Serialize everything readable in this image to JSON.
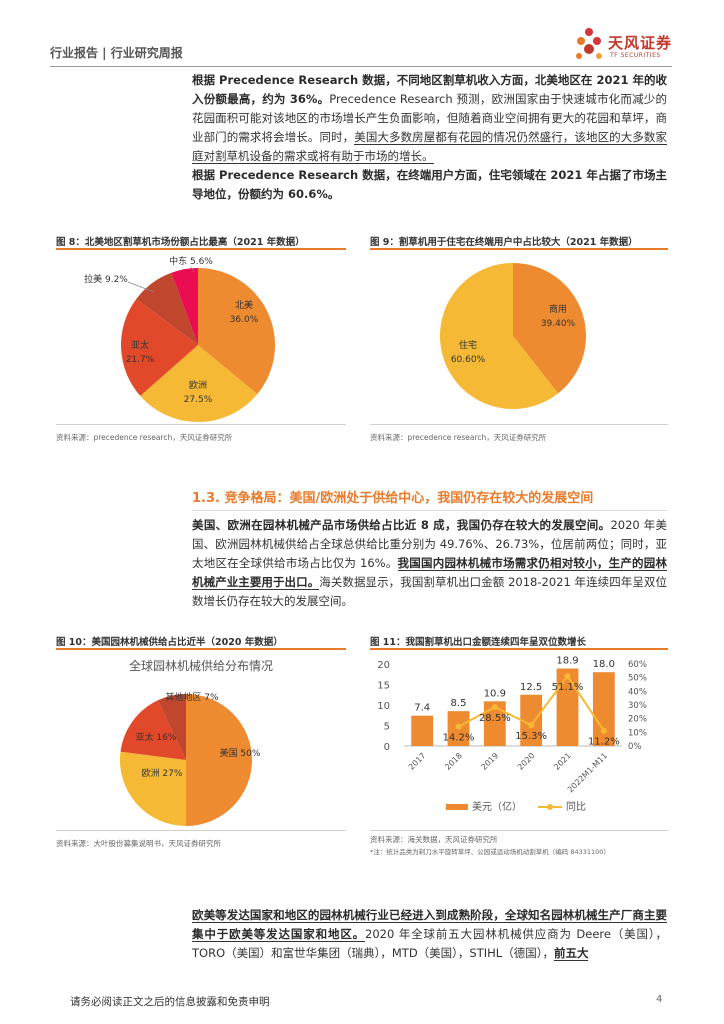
{
  "header": {
    "title": "行业报告 | 行业研究周报",
    "logo_cn": "天风证券",
    "logo_en": "TF SECURITIES"
  },
  "paragraphs": {
    "p1_bold": "根据 Precedence Research 数据，不同地区割草机收入方面，北美地区在 2021 年的收入份额最高，约为 36%。",
    "p1_rest": "Precedence Research 预测，欧洲国家由于快速城市化而减少的花园面积可能对该地区的市场增长产生负面影响，但随着商业空间拥有更大的花园和草坪，商业部门的需求将会增长。同时，",
    "p1_ul": "美国大多数房屋都有花园的情况仍然盛行，该地区的大多数家庭对割草机设备的需求或将有助于市场的增长。",
    "p2_bold": "根据 Precedence Research 数据，在终端用户方面，住宅领域在 2021 年占据了市场主导地位，份额约为 60.6%。",
    "p3_bold": "美国、欧洲在园林机械产品市场供给占比近 8 成，我国仍存在较大的发展空间。",
    "p3_rest1": "2020 年美国、欧洲园林机械供给占全球总供给比重分别为 49.76%、26.73%，位居前两位；同时，亚太地区在全球供给市场占比仅为 16%。",
    "p3_bold2": "我国国内园林机械市场需求仍相对较小，生产的园林机械产业主要用于出口。",
    "p3_rest2": "海关数据显示，我国割草机出口金额 2018-2021 年连续四年呈双位数增长仍存在较大的发展空间。",
    "p4_bold": "欧美等发达国家和地区的园林机械行业已经进入到成熟阶段，全球知名园林机械生产厂商主要集中于欧美等发达国家和地区。",
    "p4_rest": "2020 年全球前五大园林机械供应商为 Deere（美国），TORO（美国）和富世华集团（瑞典），MTD（美国），STIHL（德国），",
    "p4_tail": "前五大"
  },
  "section_heading": "1.3. 竞争格局：美国/欧洲处于供给中心，我国仍存在较大的发展空间",
  "figures": {
    "fig8": {
      "title": "图 8：北美地区割草机市场份额占比最高（2021 年数据）",
      "source": "资料来源：precedence research，天风证券研究所"
    },
    "fig9": {
      "title": "图 9：割草机用于住宅在终端用户中占比较大（2021 年数据）",
      "source": "资料来源：precedence research，天风证券研究所"
    },
    "fig10": {
      "title": "图 10：美国园林机械供给占比近半（2020 年数据）",
      "inner_title": "全球园林机械供给分布情况",
      "source": "资料来源：大叶股份募集说明书，天风证券研究所"
    },
    "fig11": {
      "title": "图 11：我国割草机出口金额连续四年呈双位数增长",
      "source": "资料来源：海关数据，天风证券研究所",
      "note": "*注：统计品类为剃刀水平旋转草坪、公园或运动场机动割草机（编码 84331100）"
    }
  },
  "chart_data": [
    {
      "type": "pie",
      "categories": [
        "北美",
        "欧洲",
        "亚太",
        "拉美",
        "中东"
      ],
      "values": [
        36.0,
        27.5,
        21.7,
        9.2,
        5.6
      ],
      "labels": [
        "36.0%",
        "27.5%",
        "21.7%",
        "拉美 9.2%",
        "中东 5.6%"
      ],
      "colors": [
        "#ee8a2f",
        "#f6b935",
        "#e2482a",
        "#c0462e",
        "#ea0d52"
      ]
    },
    {
      "type": "pie",
      "categories": [
        "商用",
        "住宅"
      ],
      "values": [
        39.4,
        60.6
      ],
      "labels": [
        "39.40%",
        "60.60%"
      ],
      "colors": [
        "#ee8a2f",
        "#f6b935"
      ]
    },
    {
      "type": "pie",
      "title": "全球园林机械供给分布情况",
      "categories": [
        "美国",
        "欧洲",
        "亚太",
        "其他地区"
      ],
      "values": [
        50,
        27,
        16,
        7
      ],
      "labels": [
        "美国 50%",
        "欧洲 27%",
        "亚太 16%",
        "其他地区 7%"
      ],
      "colors": [
        "#ee8a2f",
        "#f6b935",
        "#e2482a",
        "#c0462e"
      ]
    },
    {
      "type": "bar",
      "categories": [
        "2017",
        "2018",
        "2019",
        "2020",
        "2021",
        "2022M1-M11"
      ],
      "series": [
        {
          "name": "美元（亿）",
          "values": [
            7.4,
            8.5,
            10.9,
            12.5,
            18.9,
            18.0
          ],
          "labels": [
            "7.4",
            "8.5",
            "10.9",
            "12.5",
            "18.9",
            "18.0"
          ],
          "color": "#ee8a2f"
        },
        {
          "name": "同比",
          "type": "line",
          "values": [
            null,
            14.2,
            28.5,
            15.3,
            51.1,
            11.2
          ],
          "labels": [
            "",
            "14.2%",
            "28.5%",
            "15.3%",
            "51.1%",
            "11.2%"
          ],
          "color": "#f6b935"
        }
      ],
      "ylim": [
        0,
        20
      ],
      "yticks": [
        "0",
        "5",
        "10",
        "15",
        "20"
      ],
      "y2lim": [
        0,
        60
      ],
      "y2ticks": [
        "0%",
        "10%",
        "20%",
        "30%",
        "40%",
        "50%",
        "60%"
      ],
      "legend": "bottom"
    }
  ],
  "footer": {
    "disclaimer": "请务必阅读正文之后的信息披露和免责申明",
    "page": "4"
  }
}
